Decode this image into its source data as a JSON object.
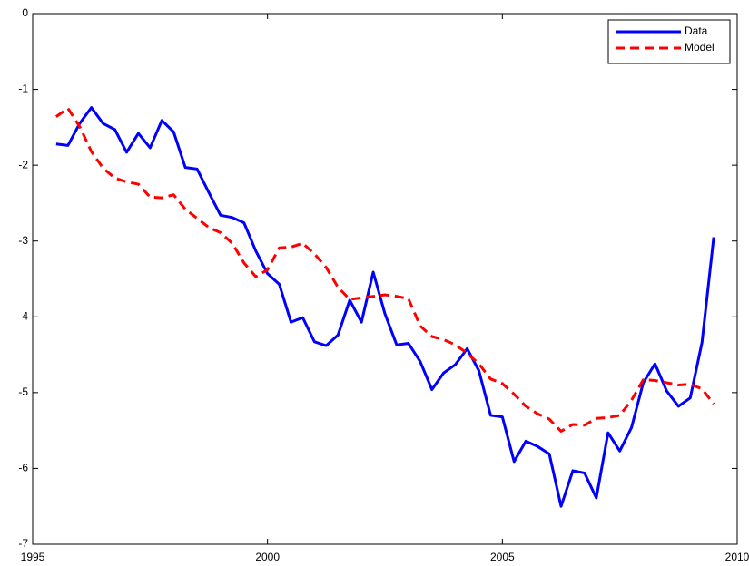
{
  "chart_data": {
    "type": "line",
    "x": [
      1995.5,
      1995.75,
      1996,
      1996.25,
      1996.5,
      1996.75,
      1997,
      1997.25,
      1997.5,
      1997.75,
      1998,
      1998.25,
      1998.5,
      1998.75,
      1999,
      1999.25,
      1999.5,
      1999.75,
      2000,
      2000.25,
      2000.5,
      2000.75,
      2001,
      2001.25,
      2001.5,
      2001.75,
      2002,
      2002.25,
      2002.5,
      2002.75,
      2003,
      2003.25,
      2003.5,
      2003.75,
      2004,
      2004.25,
      2004.5,
      2004.75,
      2005,
      2005.25,
      2005.5,
      2005.75,
      2006,
      2006.25,
      2006.5,
      2006.75,
      2007,
      2007.25,
      2007.5,
      2007.75,
      2008,
      2008.25,
      2008.5,
      2008.75,
      2009,
      2009.25,
      2009.5
    ],
    "series": [
      {
        "name": "Data",
        "color": "#0000ff",
        "linestyle": "solid",
        "values": [
          -1.72,
          -1.74,
          -1.45,
          -1.24,
          -1.45,
          -1.53,
          -1.83,
          -1.58,
          -1.77,
          -1.41,
          -1.56,
          -2.03,
          -2.05,
          -2.36,
          -2.66,
          -2.69,
          -2.76,
          -3.13,
          -3.43,
          -3.57,
          -4.07,
          -4.01,
          -4.33,
          -4.38,
          -4.24,
          -3.78,
          -4.07,
          -3.41,
          -3.96,
          -4.37,
          -4.35,
          -4.59,
          -4.96,
          -4.74,
          -4.63,
          -4.42,
          -4.71,
          -5.3,
          -5.32,
          -5.91,
          -5.64,
          -5.71,
          -5.81,
          -6.5,
          -6.03,
          -6.06,
          -6.39,
          -5.53,
          -5.77,
          -5.46,
          -4.87,
          -4.62,
          -4.98,
          -5.18,
          -5.07,
          -4.34,
          -2.95
        ]
      },
      {
        "name": "Model",
        "color": "#ff0000",
        "linestyle": "dashed",
        "values": [
          -1.36,
          -1.25,
          -1.49,
          -1.82,
          -2.04,
          -2.17,
          -2.22,
          -2.25,
          -2.42,
          -2.43,
          -2.39,
          -2.58,
          -2.7,
          -2.82,
          -2.89,
          -3.03,
          -3.29,
          -3.47,
          -3.38,
          -3.09,
          -3.08,
          -3.03,
          -3.17,
          -3.35,
          -3.61,
          -3.77,
          -3.75,
          -3.73,
          -3.71,
          -3.73,
          -3.76,
          -4.12,
          -4.26,
          -4.3,
          -4.37,
          -4.48,
          -4.62,
          -4.82,
          -4.88,
          -5.02,
          -5.18,
          -5.28,
          -5.35,
          -5.51,
          -5.42,
          -5.43,
          -5.34,
          -5.33,
          -5.3,
          -5.1,
          -4.83,
          -4.84,
          -4.87,
          -4.9,
          -4.89,
          -4.95,
          -5.15
        ]
      }
    ],
    "xlim": [
      1995,
      2010
    ],
    "xticks": [
      1995,
      2000,
      2005,
      2010
    ],
    "ylim": [
      -7,
      0
    ],
    "yticks": [
      -7,
      -6,
      -5,
      -4,
      -3,
      -2,
      -1,
      0
    ],
    "grid": false,
    "legend": "upper right"
  }
}
